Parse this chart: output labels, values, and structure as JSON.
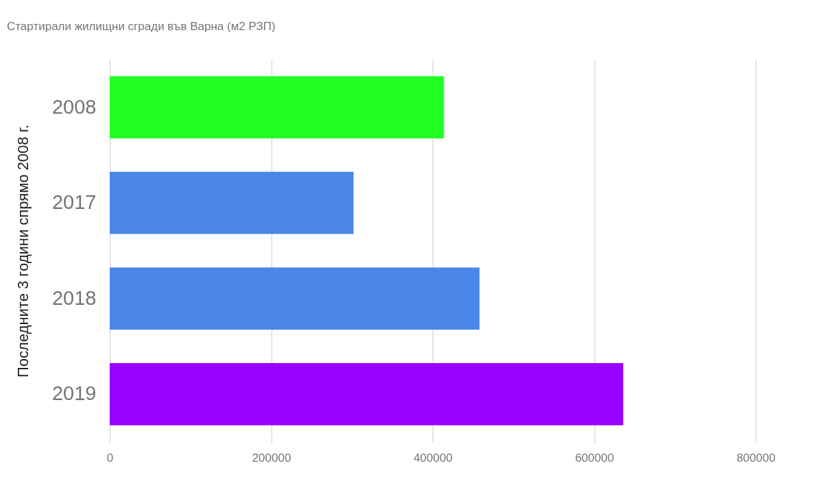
{
  "chart_data": {
    "type": "bar",
    "orientation": "horizontal",
    "title": "Стартирали жилищни сгради във Варна (м2 РЗП)",
    "ylabel": "Последните 3 години спрямо 2008 г.",
    "categories": [
      "2008",
      "2017",
      "2018",
      "2019"
    ],
    "values": [
      414000,
      302000,
      458000,
      636000
    ],
    "colors": [
      "#22ff22",
      "#4a86e8",
      "#4a86e8",
      "#9900ff"
    ],
    "xlim": [
      0,
      800000
    ],
    "xticks": [
      0,
      200000,
      400000,
      600000,
      800000
    ],
    "grid": "x"
  }
}
